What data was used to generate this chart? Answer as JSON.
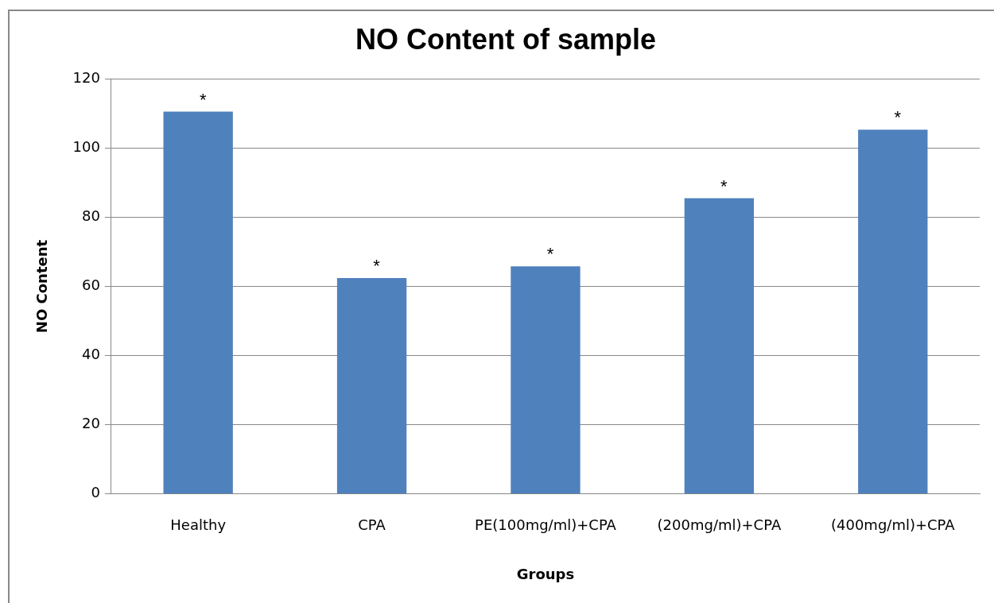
{
  "chart_data": {
    "type": "bar",
    "title": "NO Content of sample",
    "xlabel": "Groups",
    "ylabel": "NO Content",
    "categories": [
      "Healthy",
      "CPA",
      "PE(100mg/ml)+CPA",
      "(200mg/ml)+CPA",
      "(400mg/ml)+CPA"
    ],
    "values": [
      110.5,
      62.4,
      65.8,
      85.5,
      105.3
    ],
    "color": "#4f81bd",
    "ylim": [
      0,
      120
    ],
    "yticks": [
      0,
      20,
      40,
      60,
      80,
      100,
      120
    ],
    "grid": "y",
    "legend": false,
    "annotations": [
      "*",
      "*",
      "*",
      "*",
      "*"
    ]
  }
}
